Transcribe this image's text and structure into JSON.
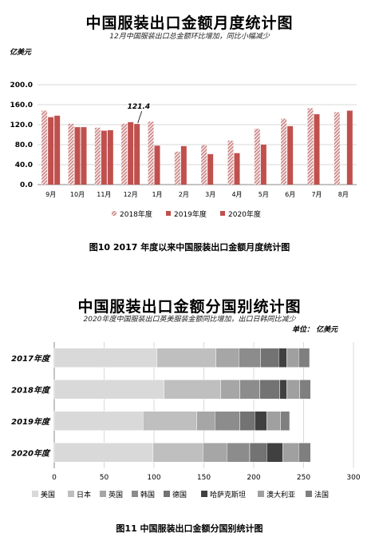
{
  "figure1": {
    "title": "中国服装出口金额月度统计图",
    "subtitle": "12月中国服装出口总金额环比增加，同比小幅减少",
    "unit": "亿美元",
    "caption": "图10    2017 年度以来中国服装出口金额月度统计图",
    "colors": {
      "2018年度": "#b65a5a",
      "2019年度": "#c0504d",
      "2020年度": "#c0504d"
    }
  },
  "figure2": {
    "title": "中国服装出口金额分国别统计图",
    "subtitle": "2020年度中国服装出口英美服装金额同比增加，出口日韩同比减少",
    "unit": "单位： 亿美元",
    "caption": "图11    中国服装出口金额分国别统计图",
    "colors": [
      "#d9d9d9",
      "#bfbfbf",
      "#a6a6a6",
      "#8c8c8c",
      "#737373",
      "#404040",
      "#a0a0a0",
      "#7f7f7f"
    ]
  },
  "chart_data": [
    {
      "type": "bar",
      "categories": [
        "9月",
        "10月",
        "11月",
        "12月",
        "1月",
        "2月",
        "3月",
        "4月",
        "5月",
        "6月",
        "7月",
        "8月"
      ],
      "series": [
        {
          "name": "2018年度",
          "values": [
            148,
            122,
            114,
            122,
            126,
            66,
            79,
            88,
            112,
            132,
            153,
            145
          ]
        },
        {
          "name": "2019年度",
          "values": [
            135,
            115,
            108,
            125,
            78,
            77,
            61,
            63,
            80,
            117,
            141,
            null
          ]
        },
        {
          "name": "2020年度",
          "values": [
            138,
            115,
            109,
            121.4,
            null,
            null,
            null,
            null,
            null,
            null,
            null,
            148
          ]
        }
      ],
      "annotations": [
        {
          "category": "12月",
          "series": "2020年度",
          "label": "121.4"
        }
      ],
      "yticks": [
        "0.0",
        "40.0",
        "80.0",
        "120.0",
        "160.0",
        "200.0"
      ],
      "ylim": [
        0,
        200
      ],
      "grid": true,
      "legend": "bottom"
    },
    {
      "type": "bar",
      "orientation": "horizontal",
      "stacked": true,
      "categories": [
        "2017年度",
        "2018年度",
        "2019年度",
        "2020年度"
      ],
      "series": [
        {
          "name": "美国",
          "values": [
            103,
            110,
            89,
            99
          ]
        },
        {
          "name": "日本",
          "values": [
            59,
            57,
            54,
            50
          ]
        },
        {
          "name": "英国",
          "values": [
            23,
            19,
            18,
            24
          ]
        },
        {
          "name": "韩国",
          "values": [
            22,
            20,
            25,
            23
          ]
        },
        {
          "name": "德国",
          "values": [
            18,
            20,
            15,
            17
          ]
        },
        {
          "name": "哈萨克斯坦",
          "values": [
            8,
            7,
            12,
            16
          ]
        },
        {
          "name": "澳大利亚",
          "values": [
            12,
            13,
            14,
            16
          ]
        },
        {
          "name": "法国",
          "values": [
            11,
            11,
            9,
            12
          ]
        }
      ],
      "xticks": [
        "0",
        "50",
        "100",
        "150",
        "200",
        "250",
        "300"
      ],
      "xlim": [
        0,
        300
      ],
      "grid": true,
      "legend": "bottom"
    }
  ]
}
